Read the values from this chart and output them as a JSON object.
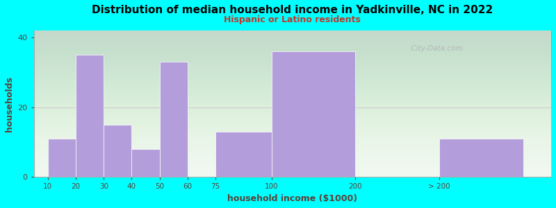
{
  "title": "Distribution of median household income in Yadkinville, NC in 2022",
  "subtitle": "Hispanic or Latino residents",
  "xlabel": "household income ($1000)",
  "ylabel": "households",
  "background_color": "#00FFFF",
  "bar_color": "#b39ddb",
  "bar_edge_color": "#ffffff",
  "title_color": "#000000",
  "subtitle_color": "#c0392b",
  "axis_label_color": "#5d4037",
  "tick_label_color": "#5d4037",
  "watermark": "  City-Data.com",
  "ylim": [
    0,
    42
  ],
  "yticks": [
    0,
    20,
    40
  ],
  "tick_labels": [
    "10",
    "20",
    "30",
    "40",
    "50",
    "60",
    "75",
    "100",
    "200",
    "> 200"
  ],
  "values": [
    11,
    35,
    15,
    8,
    33,
    0,
    13,
    36,
    0,
    11
  ],
  "bar_lefts": [
    0,
    1,
    2,
    3,
    4,
    5,
    6,
    8,
    11,
    14
  ],
  "bar_widths": [
    1,
    1,
    1,
    1,
    1,
    1,
    2,
    3,
    1,
    3
  ]
}
